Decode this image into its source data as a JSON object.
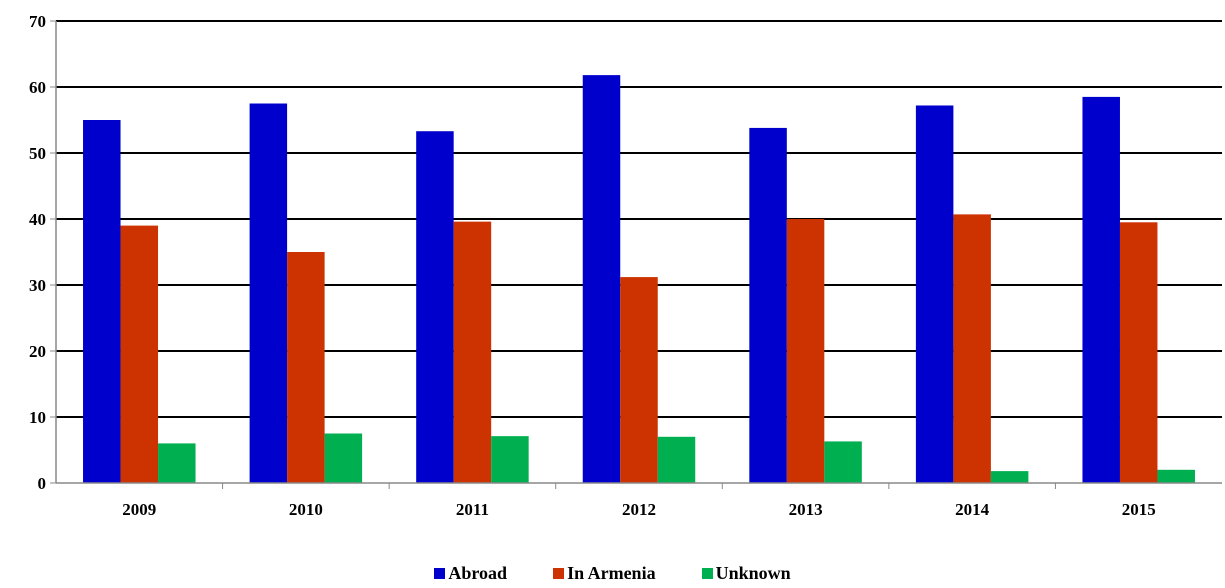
{
  "chart_data": {
    "type": "bar",
    "categories": [
      "2009",
      "2010",
      "2011",
      "2012",
      "2013",
      "2014",
      "2015"
    ],
    "series": [
      {
        "name": "Abroad",
        "color": "#0000cc",
        "values": [
          55,
          57.5,
          53.3,
          61.8,
          53.8,
          57.2,
          58.5
        ]
      },
      {
        "name": "In Armenia",
        "color": "#cc3300",
        "values": [
          39,
          35,
          39.6,
          31.2,
          40,
          40.7,
          39.5
        ]
      },
      {
        "name": "Unknown",
        "color": "#00b050",
        "values": [
          6,
          7.5,
          7.1,
          7,
          6.3,
          1.8,
          2
        ]
      }
    ],
    "yticks": [
      "0",
      "10",
      "20",
      "30",
      "40",
      "50",
      "60",
      "70"
    ],
    "ylim": [
      0,
      70
    ],
    "grid": true,
    "legend_position": "bottom"
  }
}
